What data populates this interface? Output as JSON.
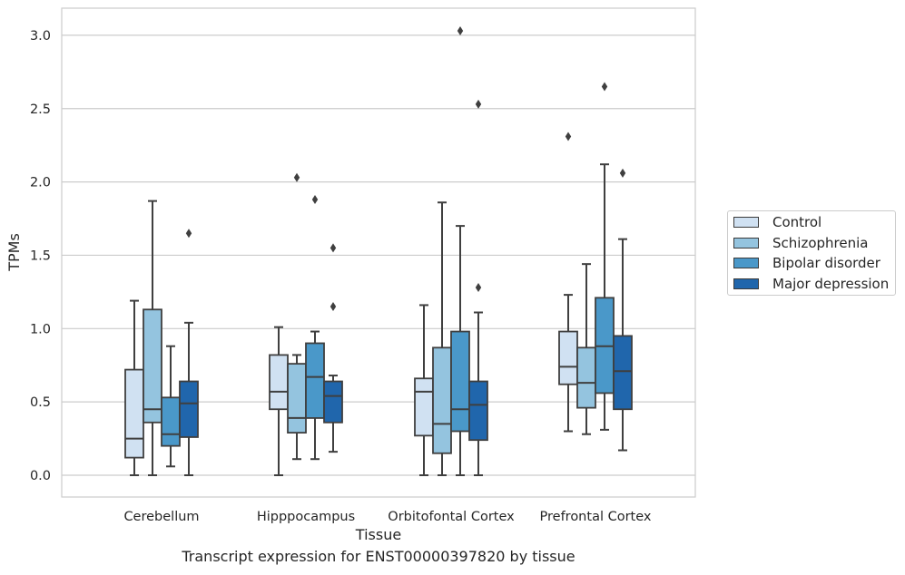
{
  "chart_data": {
    "type": "boxplot",
    "caption": "Transcript expression for ENST00000397820 by tissue",
    "xlabel": "Tissue",
    "ylabel": "TPMs",
    "ylim": [
      -0.15,
      3.2
    ],
    "yticks": [
      "0.0",
      "0.5",
      "1.0",
      "1.5",
      "2.0",
      "2.5",
      "3.0"
    ],
    "categories": [
      "Cerebellum",
      "Hipppocampus",
      "Orbitofontal Cortex",
      "Prefrontal Cortex"
    ],
    "grid": "horizontal",
    "legend_position": "right",
    "series": [
      {
        "name": "Control",
        "color": "#d0e1f2",
        "boxes": [
          {
            "whislo": 0.0,
            "q1": 0.12,
            "med": 0.25,
            "q3": 0.72,
            "whishi": 1.19,
            "fliers": []
          },
          {
            "whislo": 0.0,
            "q1": 0.45,
            "med": 0.57,
            "q3": 0.82,
            "whishi": 1.01,
            "fliers": []
          },
          {
            "whislo": 0.0,
            "q1": 0.27,
            "med": 0.57,
            "q3": 0.66,
            "whishi": 1.16,
            "fliers": []
          },
          {
            "whislo": 0.3,
            "q1": 0.62,
            "med": 0.74,
            "q3": 0.98,
            "whishi": 1.23,
            "fliers": [
              2.31
            ]
          }
        ]
      },
      {
        "name": "Schizophrenia",
        "color": "#94c4df",
        "boxes": [
          {
            "whislo": 0.0,
            "q1": 0.36,
            "med": 0.45,
            "q3": 1.13,
            "whishi": 1.87,
            "fliers": []
          },
          {
            "whislo": 0.11,
            "q1": 0.29,
            "med": 0.39,
            "q3": 0.76,
            "whishi": 0.82,
            "fliers": [
              2.03
            ]
          },
          {
            "whislo": 0.0,
            "q1": 0.15,
            "med": 0.35,
            "q3": 0.87,
            "whishi": 1.86,
            "fliers": []
          },
          {
            "whislo": 0.28,
            "q1": 0.46,
            "med": 0.63,
            "q3": 0.87,
            "whishi": 1.44,
            "fliers": []
          }
        ]
      },
      {
        "name": "Bipolar disorder",
        "color": "#4a98c9",
        "boxes": [
          {
            "whislo": 0.06,
            "q1": 0.2,
            "med": 0.28,
            "q3": 0.53,
            "whishi": 0.88,
            "fliers": []
          },
          {
            "whislo": 0.11,
            "q1": 0.39,
            "med": 0.67,
            "q3": 0.9,
            "whishi": 0.98,
            "fliers": [
              1.88
            ]
          },
          {
            "whislo": 0.0,
            "q1": 0.3,
            "med": 0.45,
            "q3": 0.98,
            "whishi": 1.7,
            "fliers": [
              3.03
            ]
          },
          {
            "whislo": 0.31,
            "q1": 0.56,
            "med": 0.88,
            "q3": 1.21,
            "whishi": 2.12,
            "fliers": [
              2.65
            ]
          }
        ]
      },
      {
        "name": "Major depression",
        "color": "#2066ac",
        "boxes": [
          {
            "whislo": 0.0,
            "q1": 0.26,
            "med": 0.49,
            "q3": 0.64,
            "whishi": 1.04,
            "fliers": [
              1.65
            ]
          },
          {
            "whislo": 0.16,
            "q1": 0.36,
            "med": 0.54,
            "q3": 0.64,
            "whishi": 0.68,
            "fliers": [
              1.15,
              1.55
            ]
          },
          {
            "whislo": 0.0,
            "q1": 0.24,
            "med": 0.48,
            "q3": 0.64,
            "whishi": 1.11,
            "fliers": [
              1.28,
              2.53
            ]
          },
          {
            "whislo": 0.17,
            "q1": 0.45,
            "med": 0.71,
            "q3": 0.95,
            "whishi": 1.61,
            "fliers": [
              2.06
            ]
          }
        ]
      }
    ]
  }
}
